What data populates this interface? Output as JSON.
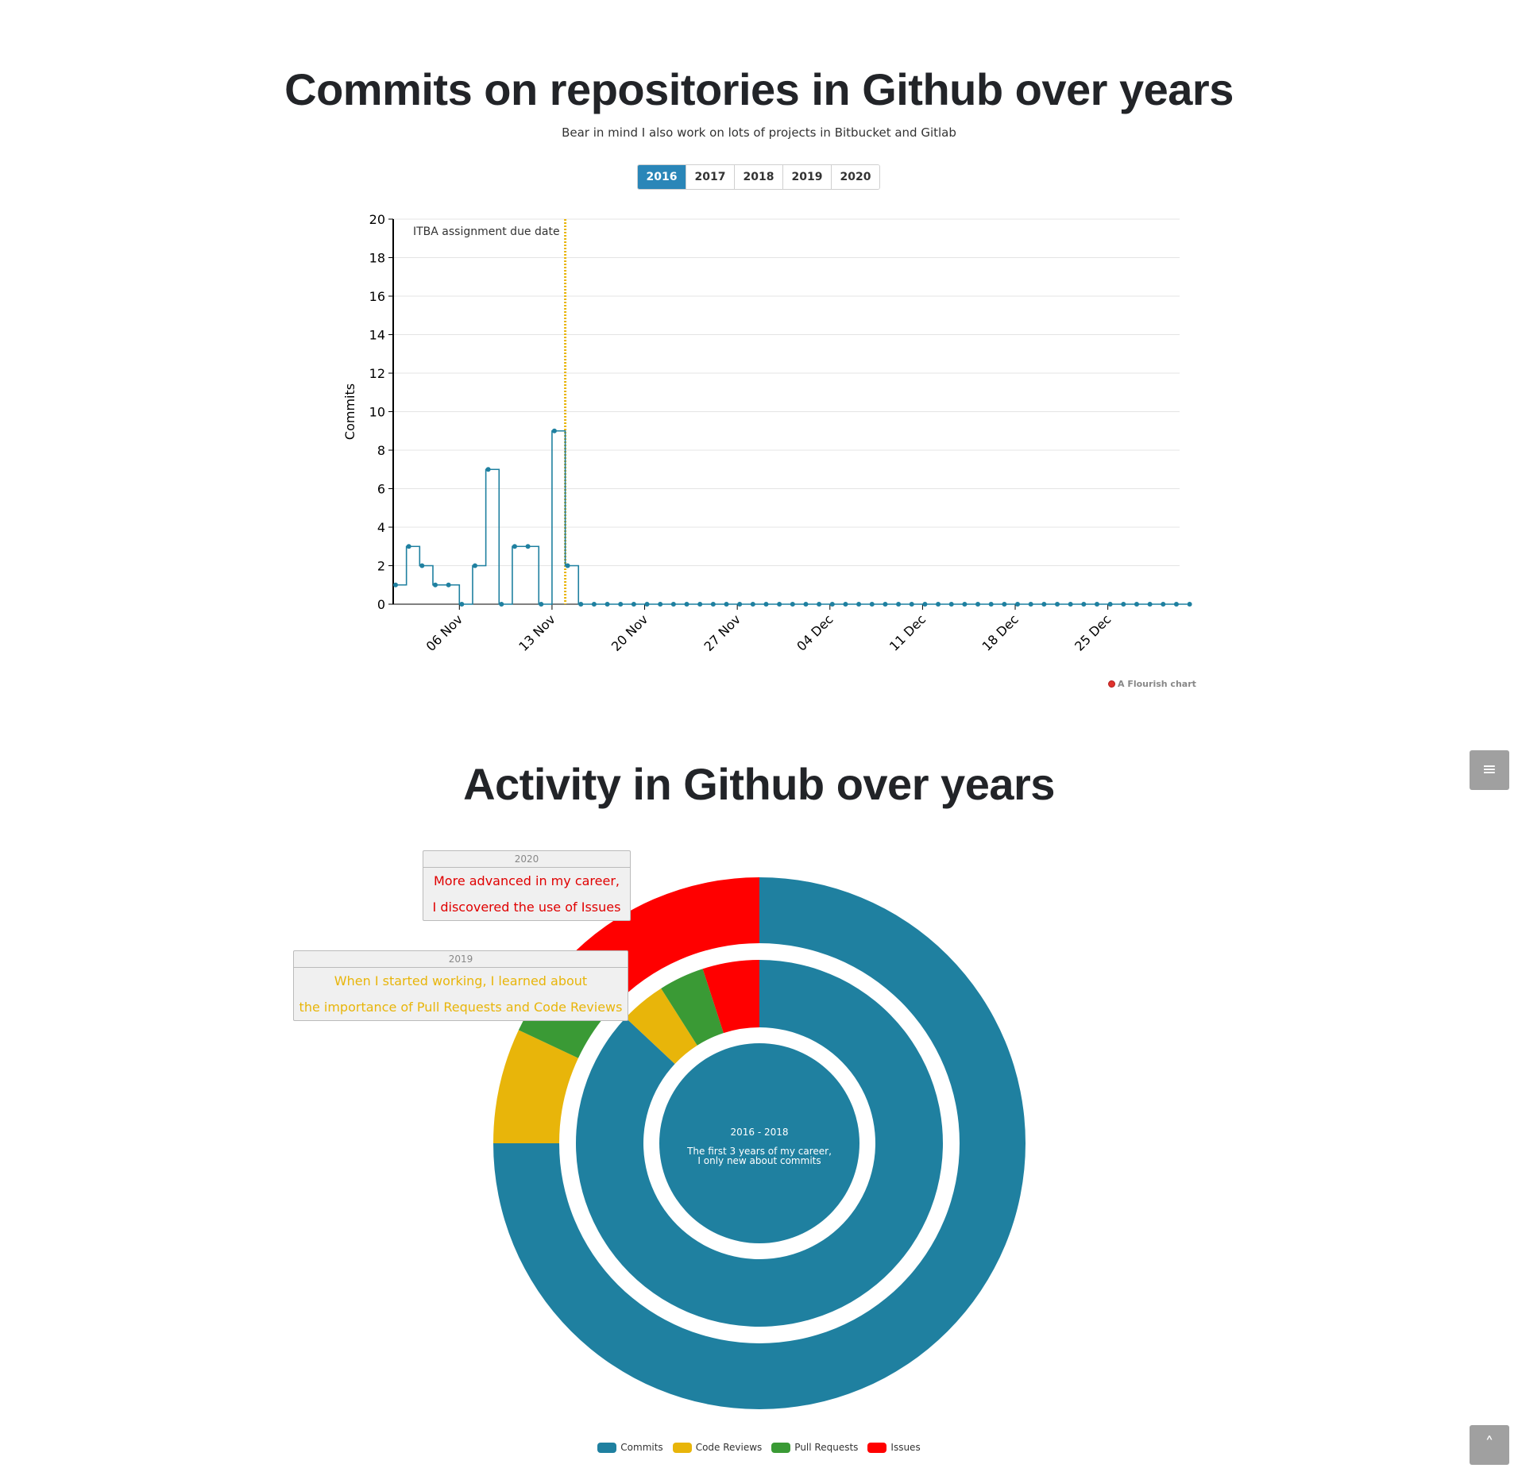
{
  "section1": {
    "title": "Commits on repositories in Github over years",
    "subtitle": "Bear in mind I also work on lots of projects in Bitbucket and Gitlab",
    "tabs": [
      "2016",
      "2017",
      "2018",
      "2019",
      "2020"
    ],
    "active_tab": "2016",
    "credit": "A Flourish chart"
  },
  "section2": {
    "title": "Activity in Github over years",
    "callout_2020": {
      "title": "2020",
      "lines": [
        "More advanced in my career,",
        "I discovered the use of Issues"
      ]
    },
    "callout_2019": {
      "title": "2019",
      "lines": [
        "When I started working, I learned about",
        "the importance of Pull Requests and Code Reviews"
      ]
    },
    "center": {
      "title": "2016 - 2018",
      "lines": [
        "The first 3 years of my career,",
        "I only new about commits"
      ]
    }
  },
  "colors": {
    "commits": "#1f80a0",
    "code_reviews": "#e8b50a",
    "pull_requests": "#3a9a35",
    "issues": "#ff0000",
    "tab_active": "#2a86b8",
    "annotation": "#e8b50a"
  },
  "chart_data": [
    {
      "type": "line",
      "step": true,
      "ylabel": "Commits",
      "xlabel": "",
      "ylim": [
        0,
        20
      ],
      "yticks": [
        0,
        2,
        4,
        6,
        8,
        10,
        12,
        14,
        16,
        18,
        20
      ],
      "x_start": "2016-11-01",
      "x_end": "2016-12-31",
      "x_ticks": [
        "06 Nov",
        "13 Nov",
        "20 Nov",
        "27 Nov",
        "04 Dec",
        "11 Dec",
        "18 Dec",
        "25 Dec"
      ],
      "series": [
        {
          "values": [
            1,
            3,
            2,
            1,
            1,
            0,
            2,
            7,
            0,
            3,
            3,
            0,
            9,
            2,
            0,
            0,
            0,
            0,
            0,
            0,
            0,
            0,
            0,
            0,
            0,
            0,
            0,
            0,
            0,
            0,
            0,
            0,
            0,
            0,
            0,
            0,
            0,
            0,
            0,
            0,
            0,
            0,
            0,
            0,
            0,
            0,
            0,
            0,
            0,
            0,
            0,
            0,
            0,
            0,
            0,
            0,
            0,
            0,
            0,
            0,
            0
          ]
        }
      ],
      "annotation": {
        "label": "ITBA assignment due date",
        "date": "2016-11-14"
      },
      "grid": true
    },
    {
      "type": "pie",
      "donut": true,
      "rings": [
        {
          "name": "2016 - 2018",
          "slices": [
            {
              "label": "Commits",
              "value": 100
            }
          ]
        },
        {
          "name": "2019",
          "slices": [
            {
              "label": "Commits",
              "value": 87
            },
            {
              "label": "Code Reviews",
              "value": 4
            },
            {
              "label": "Pull Requests",
              "value": 4
            },
            {
              "label": "Issues",
              "value": 5
            }
          ]
        },
        {
          "name": "2020",
          "slices": [
            {
              "label": "Commits",
              "value": 75
            },
            {
              "label": "Code Reviews",
              "value": 7
            },
            {
              "label": "Pull Requests",
              "value": 5
            },
            {
              "label": "Issues",
              "value": 13
            }
          ]
        }
      ],
      "legend": [
        "Commits",
        "Code Reviews",
        "Pull Requests",
        "Issues"
      ],
      "legend_position": "bottom"
    }
  ]
}
